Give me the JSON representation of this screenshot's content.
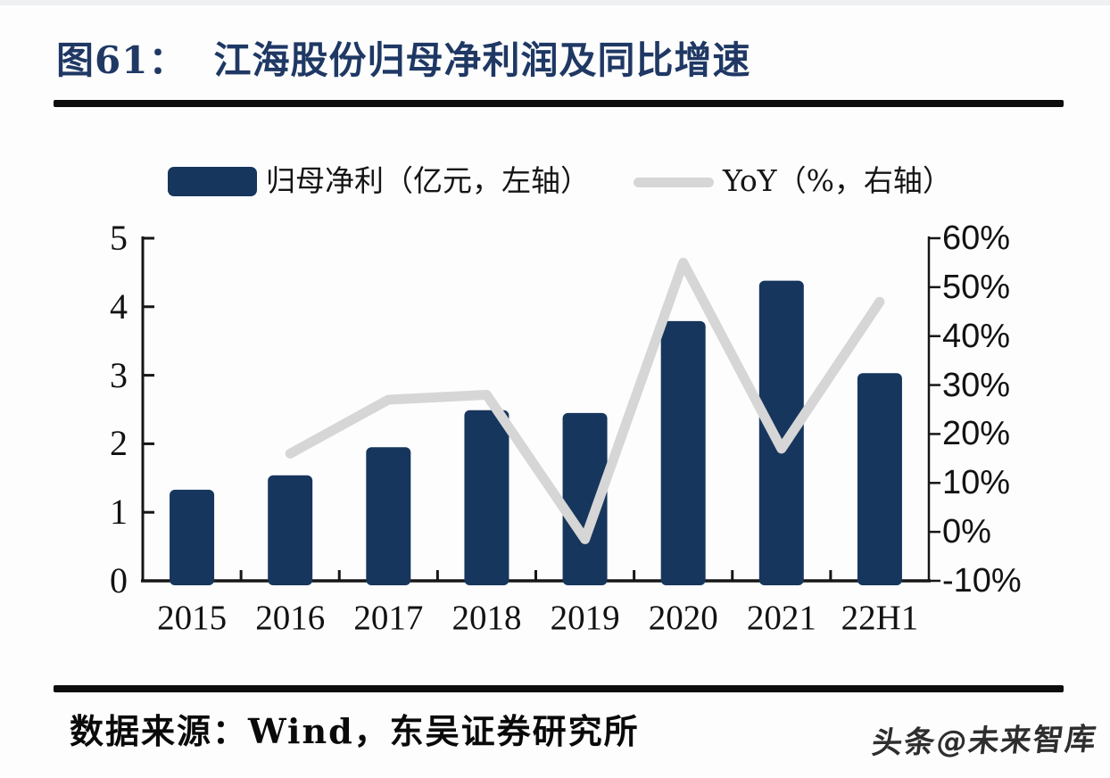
{
  "figure": {
    "caption_label": "图61：",
    "caption_title": "江海股份归母净利润及同比增速",
    "source": "数据来源：Wind，东吴证券研究所",
    "watermark": "头条@未来智库"
  },
  "legend": {
    "bar_label": "归母净利（亿元，左轴）",
    "line_label": "YoY（%，右轴）"
  },
  "colors": {
    "bar": "#17365D",
    "line": "#D6D6D6",
    "title": "#1F3864",
    "axis": "#161616",
    "rule": "#0D0D0D"
  },
  "chart_data": {
    "type": "bar",
    "subtype": "dual-axis bar + line combo",
    "title": "江海股份归母净利润及同比增速",
    "categories": [
      "2015",
      "2016",
      "2017",
      "2018",
      "2019",
      "2020",
      "2021",
      "22H1"
    ],
    "series": [
      {
        "name": "归母净利（亿元，左轴）",
        "type": "bar",
        "axis": "left",
        "values": [
          1.33,
          1.54,
          1.95,
          2.49,
          2.45,
          3.79,
          4.38,
          3.03
        ]
      },
      {
        "name": "YoY（%，右轴）",
        "type": "line",
        "axis": "right",
        "values": [
          null,
          16,
          27,
          28,
          -1.5,
          55,
          17,
          47
        ]
      }
    ],
    "left_axis": {
      "min": 0,
      "max": 5,
      "step": 1,
      "ticks": [
        "5",
        "4",
        "3",
        "2",
        "1",
        "0"
      ]
    },
    "right_axis": {
      "min": -10,
      "max": 60,
      "step": 10,
      "ticks": [
        "60%",
        "50%",
        "40%",
        "30%",
        "20%",
        "10%",
        "0%",
        "-10%"
      ]
    },
    "grid": false,
    "legend_position": "top-center"
  }
}
